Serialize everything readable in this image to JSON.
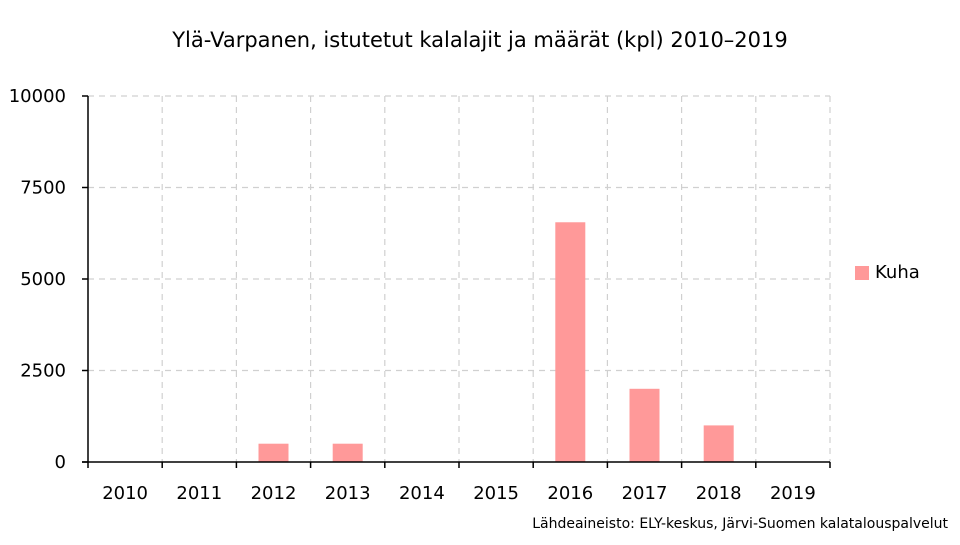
{
  "chart_data": {
    "type": "bar",
    "title": "Ylä-Varpanen, istutetut kalalajit ja määrät (kpl) 2010–2019",
    "categories": [
      "2010",
      "2011",
      "2012",
      "2013",
      "2014",
      "2015",
      "2016",
      "2017",
      "2018",
      "2019"
    ],
    "series": [
      {
        "name": "Kuha",
        "values": [
          0,
          0,
          500,
          500,
          0,
          0,
          6550,
          2000,
          1000,
          0
        ],
        "color": "#ff9999"
      }
    ],
    "ylim": [
      0,
      10000
    ],
    "yticks": [
      "0",
      "2500",
      "5000",
      "7500",
      "10000"
    ],
    "grid": true,
    "legend": "right"
  },
  "source_note": "Lähdeaineisto: ELY-keskus, Järvi-Suomen kalatalouspalvelut"
}
